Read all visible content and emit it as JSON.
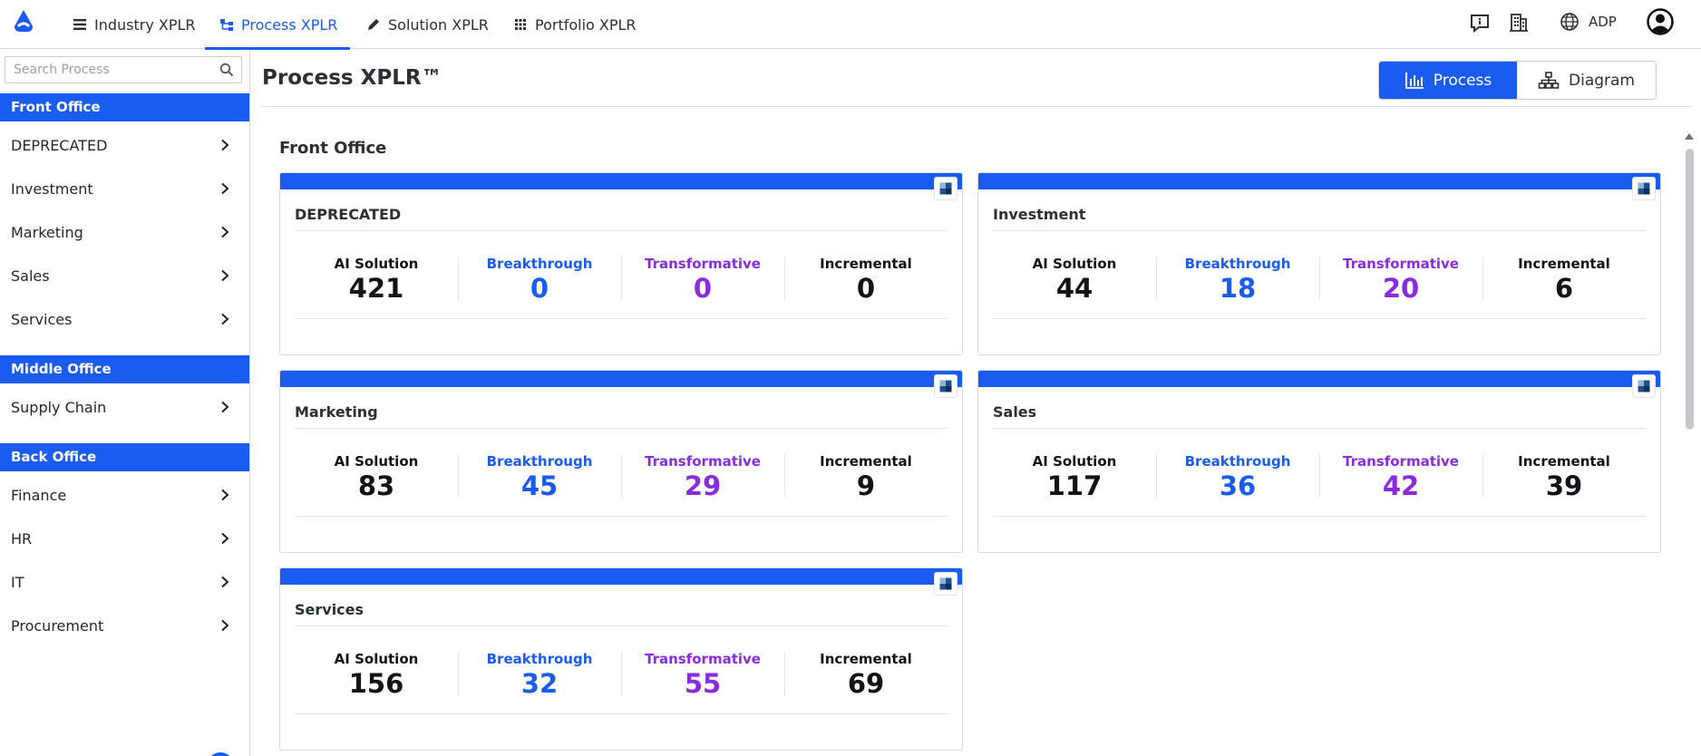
{
  "nav": {
    "tabs": [
      {
        "label": "Industry XPLR",
        "icon": "list-icon"
      },
      {
        "label": "Process XPLR",
        "icon": "process-icon"
      },
      {
        "label": "Solution XPLR",
        "icon": "pencil-icon"
      },
      {
        "label": "Portfolio XPLR",
        "icon": "grid-icon"
      }
    ],
    "active_tab": "Process XPLR",
    "language": "ADP"
  },
  "sidebar": {
    "search_placeholder": "Search Process",
    "sections": [
      {
        "title": "Front Office",
        "items": [
          "DEPRECATED",
          "Investment",
          "Marketing",
          "Sales",
          "Services"
        ]
      },
      {
        "title": "Middle Office",
        "items": [
          "Supply Chain"
        ]
      },
      {
        "title": "Back Office",
        "items": [
          "Finance",
          "HR",
          "IT",
          "Procurement"
        ]
      }
    ]
  },
  "main": {
    "title": "Process XPLR™",
    "toggle": {
      "process": "Process",
      "diagram": "Diagram"
    },
    "section_title": "Front Office",
    "stat_labels": {
      "ai": "AI Solution",
      "breakthrough": "Breakthrough",
      "transformative": "Transformative",
      "incremental": "Incremental"
    },
    "cards": [
      {
        "title": "DEPRECATED",
        "ai": "421",
        "breakthrough": "0",
        "transformative": "0",
        "incremental": "0"
      },
      {
        "title": "Investment",
        "ai": "44",
        "breakthrough": "18",
        "transformative": "20",
        "incremental": "6"
      },
      {
        "title": "Marketing",
        "ai": "83",
        "breakthrough": "45",
        "transformative": "29",
        "incremental": "9"
      },
      {
        "title": "Sales",
        "ai": "117",
        "breakthrough": "36",
        "transformative": "42",
        "incremental": "39"
      },
      {
        "title": "Services",
        "ai": "156",
        "breakthrough": "32",
        "transformative": "55",
        "incremental": "69"
      }
    ]
  },
  "colors": {
    "accent": "#1a5cf0",
    "transformative": "#8a2be2",
    "border": "#d7dbe2"
  }
}
